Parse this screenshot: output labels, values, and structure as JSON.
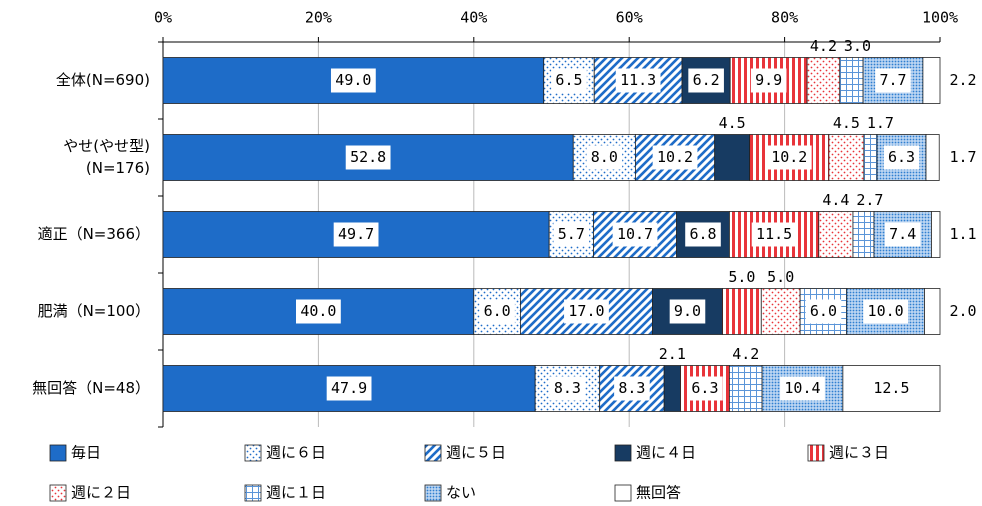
{
  "chart_data": {
    "type": "stacked_bar_horizontal",
    "categories": [
      "全体(N=690)",
      [
        "やせ(やせ型)",
        "(N=176)"
      ],
      "適正（N=366）",
      "肥満（N=100）",
      "無回答（N=48）"
    ],
    "xlim": [
      0,
      100
    ],
    "xticks": [
      {
        "value": 0,
        "label": "0%"
      },
      {
        "value": 20,
        "label": "20%"
      },
      {
        "value": 40,
        "label": "40%"
      },
      {
        "value": 60,
        "label": "60%"
      },
      {
        "value": 80,
        "label": "80%"
      },
      {
        "value": 100,
        "label": "100%"
      }
    ],
    "grid": true,
    "legend": "bottom",
    "series": [
      {
        "name": "毎日",
        "color": "#1e6cc8",
        "pattern": "solid",
        "values": [
          49.0,
          52.8,
          49.7,
          40.0,
          47.9
        ],
        "value_labels": [
          "49.0",
          "52.8",
          "49.7",
          "40.0",
          "47.9"
        ]
      },
      {
        "name": "週に６日",
        "color": "#1e6cc8",
        "pattern": "dots",
        "values": [
          6.5,
          8.0,
          5.7,
          6.0,
          8.3
        ],
        "value_labels": [
          "6.5",
          "8.0",
          "5.7",
          "6.0",
          "8.3"
        ]
      },
      {
        "name": "週に５日",
        "color": "#1e6cc8",
        "pattern": "diagonal",
        "values": [
          11.3,
          10.2,
          10.7,
          17.0,
          8.3
        ],
        "value_labels": [
          "11.3",
          "10.2",
          "10.7",
          "17.0",
          "8.3"
        ]
      },
      {
        "name": "週に４日",
        "color": "#173b62",
        "pattern": "solid",
        "values": [
          6.2,
          4.5,
          6.8,
          9.0,
          2.1
        ],
        "value_labels": [
          "6.2",
          "4.5",
          "6.8",
          "9.0",
          "2.1"
        ]
      },
      {
        "name": "週に３日",
        "color": "#e8343a",
        "pattern": "vstripes",
        "values": [
          9.9,
          10.2,
          11.5,
          5.0,
          6.3
        ],
        "value_labels": [
          "9.9",
          "10.2",
          "11.5",
          "5.0",
          "6.3"
        ]
      },
      {
        "name": "週に２日",
        "color": "#e8343a",
        "pattern": "dots",
        "values": [
          4.2,
          4.5,
          4.4,
          5.0,
          0
        ],
        "value_labels": [
          "4.2",
          "4.5",
          "4.4",
          "5.0",
          null
        ]
      },
      {
        "name": "週に１日",
        "color": "#5b95d8",
        "pattern": "grid",
        "values": [
          3.0,
          1.7,
          2.7,
          6.0,
          4.2
        ],
        "value_labels": [
          "3.0",
          "1.7",
          "2.7",
          "6.0",
          "4.2"
        ]
      },
      {
        "name": "ない",
        "color": "#2f7fd0",
        "pattern": "densedots",
        "values": [
          7.7,
          6.3,
          7.4,
          10.0,
          10.4
        ],
        "value_labels": [
          "7.7",
          "6.3",
          "7.4",
          "10.0",
          "10.4"
        ]
      },
      {
        "name": "無回答",
        "color": "#ffffff",
        "pattern": "solid",
        "values": [
          2.2,
          1.7,
          1.1,
          2.0,
          12.5
        ],
        "value_labels": [
          "2.2",
          "1.7",
          "1.1",
          "2.0",
          "12.5"
        ]
      }
    ]
  }
}
